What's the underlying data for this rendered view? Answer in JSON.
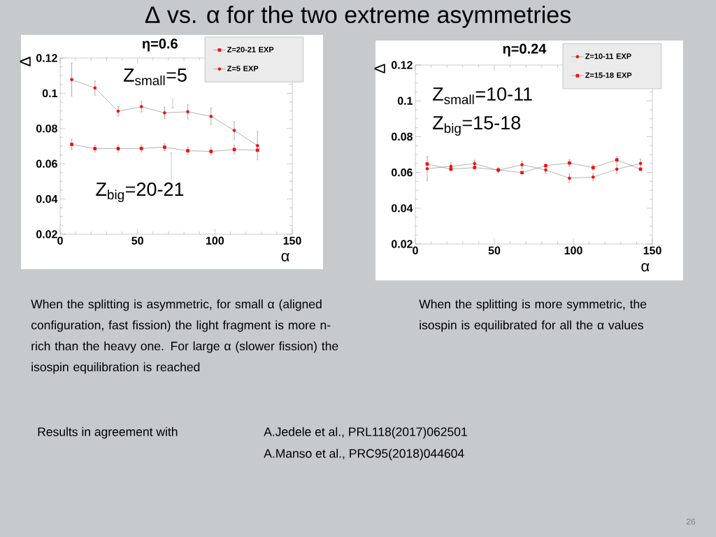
{
  "chart_data": [
    {
      "type": "line",
      "title": "η=0.6",
      "xlabel": "α",
      "ylabel": "Δ",
      "xlim": [
        0,
        150
      ],
      "ylim": [
        0.02,
        0.12
      ],
      "xticks": [
        0,
        50,
        100,
        150
      ],
      "yticks": [
        0.02,
        0.04,
        0.06,
        0.08,
        0.1,
        0.12
      ],
      "legend": "top right",
      "line_style": "solid",
      "x": [
        7.5,
        22.5,
        37.5,
        52.5,
        67.5,
        82.5,
        97.5,
        112.5,
        127.5
      ],
      "series": [
        {
          "name": "Z=20-21 EXP",
          "color": "#ff0000",
          "marker": "square",
          "values": [
            0.071,
            0.0686,
            0.0686,
            0.0687,
            0.0694,
            0.0674,
            0.067,
            0.0681,
            0.0677
          ],
          "errors": [
            0.003,
            0.002,
            0.002,
            0.002,
            0.002,
            0.002,
            0.002,
            0.0025,
            null
          ]
        },
        {
          "name": "Z=5 EXP",
          "color": "#ff0000",
          "marker": "circle",
          "values": [
            0.1078,
            0.103,
            0.0898,
            0.0924,
            0.0889,
            0.0895,
            0.0869,
            0.0789,
            0.0703
          ],
          "errors": [
            0.0094,
            0.004,
            0.0028,
            0.003,
            0.0033,
            0.004,
            0.0048,
            0.005,
            0.008
          ]
        }
      ],
      "annotations": [
        "Δ vs. α for the two extreme asymmetries",
        "Z$_{small}$=5",
        "Z$_{big}$=20-21",
        "When the splitting is asymmetric, for small α (aligned configuration, fast fission) the light fragment is more n-rich than the heavy one. For large α (slower fission) the isospin equilibration is reached",
        "Results in agreement with",
        "A.Jedele et al., PRL118(2017)062501",
        "A.Manso  et al., PRC95(2018)044604",
        "26"
      ]
    },
    {
      "type": "line",
      "title": "η=0.24",
      "xlabel": "α",
      "ylabel": "Δ",
      "xlim": [
        0,
        150
      ],
      "ylim": [
        0.02,
        0.12
      ],
      "xticks": [
        0,
        50,
        100,
        150
      ],
      "yticks": [
        0.02,
        0.04,
        0.06,
        0.08,
        0.1,
        0.12
      ],
      "legend": "top right",
      "line_style": "solid",
      "x": [
        7.5,
        22.5,
        37.5,
        52.5,
        67.5,
        82.5,
        97.5,
        112.5,
        127.5,
        142.5
      ],
      "series": [
        {
          "name": "Z=10-11 EXP",
          "color": "#ff0000",
          "marker": "circle",
          "values": [
            0.0621,
            0.0634,
            0.0649,
            0.0612,
            0.0643,
            0.0614,
            0.0568,
            0.0574,
            0.0618,
            0.065
          ],
          "errors": [
            0.0068,
            0.002,
            0.002,
            0.0015,
            0.002,
            0.002,
            0.0025,
            0.002,
            0.0025,
            0.0025
          ]
        },
        {
          "name": "Z=15-18 EXP",
          "color": "#ff0000",
          "marker": "square",
          "values": [
            0.0647,
            0.0618,
            0.0627,
            0.0614,
            0.0599,
            0.0638,
            0.0653,
            0.0627,
            0.067,
            0.0618
          ],
          "errors": [
            null,
            null,
            null,
            null,
            null,
            null,
            0.002,
            0.0015,
            0.0018,
            null
          ]
        }
      ],
      "annotations": [
        "Z$_{small}$=10-11",
        "Z$_{big}$=15-18",
        "When the splitting is more symmetric, the isospin is equilibrated for all the α values"
      ]
    }
  ]
}
